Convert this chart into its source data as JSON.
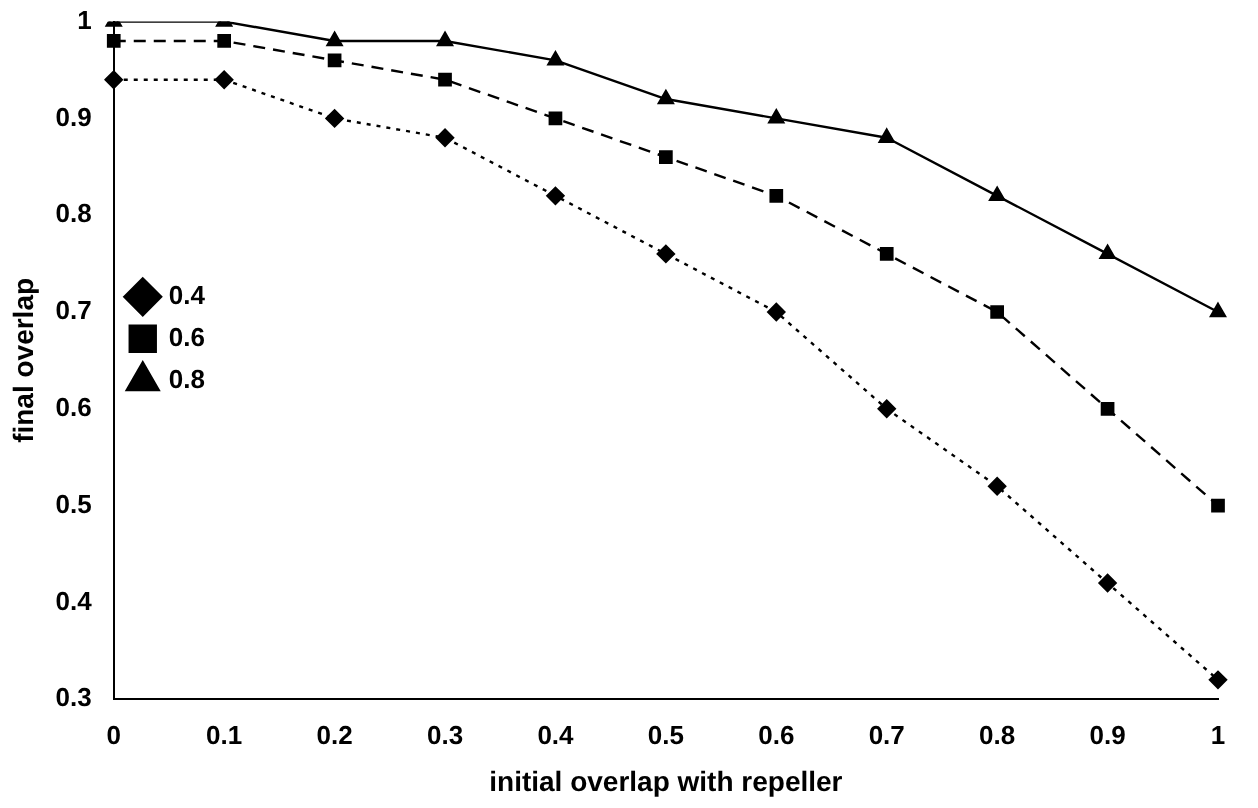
{
  "chart_data": {
    "type": "line",
    "xlabel": "initial overlap with repeller",
    "ylabel": "final overlap",
    "categories": [
      "0",
      "0.1",
      "0.2",
      "0.3",
      "0.4",
      "0.5",
      "0.6",
      "0.7",
      "0.8",
      "0.9",
      "1"
    ],
    "series": [
      {
        "name": "0.4",
        "color": "#000000",
        "marker": "diamond",
        "line_style": "dotted",
        "values": [
          0.94,
          0.94,
          0.9,
          0.88,
          0.82,
          0.76,
          0.7,
          0.6,
          0.52,
          0.42,
          0.32
        ]
      },
      {
        "name": "0.6",
        "color": "#000000",
        "marker": "square",
        "line_style": "dashed",
        "values": [
          0.98,
          0.98,
          0.96,
          0.94,
          0.9,
          0.86,
          0.82,
          0.76,
          0.7,
          0.6,
          0.5
        ]
      },
      {
        "name": "0.8",
        "color": "#000000",
        "marker": "triangle",
        "line_style": "solid",
        "values": [
          1,
          1,
          0.98,
          0.98,
          0.96,
          0.92,
          0.9,
          0.88,
          0.82,
          0.76,
          0.7
        ]
      }
    ],
    "ylim": [
      0.3,
      1
    ],
    "yticks": [
      0.3,
      0.4,
      0.5,
      0.6,
      0.7,
      0.8,
      0.9,
      1
    ],
    "grid": false,
    "legend": "left"
  }
}
